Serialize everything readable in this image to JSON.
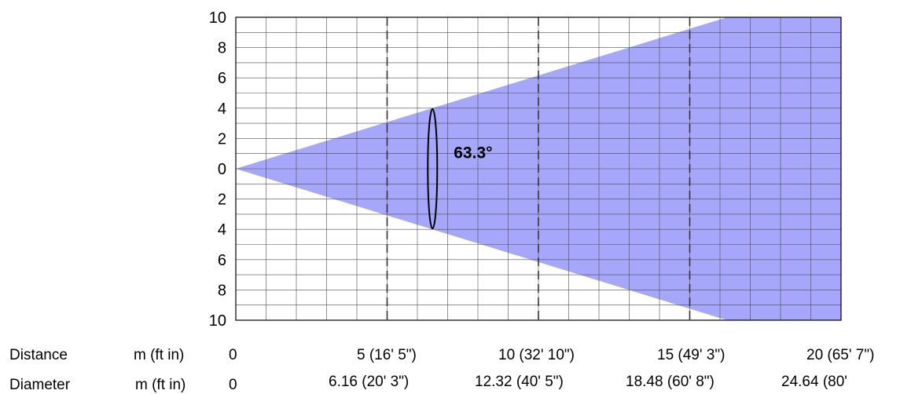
{
  "chart_data": {
    "type": "area",
    "title": "",
    "xlabel": "",
    "ylabel": "",
    "xlim": [
      0,
      20
    ],
    "ylim": [
      -10,
      10
    ],
    "grid": true,
    "y_tick_values": [
      10,
      8,
      6,
      4,
      2,
      0,
      -2,
      -4,
      -6,
      -8,
      -10
    ],
    "y_tick_labels": [
      "10",
      "8",
      "6",
      "4",
      "2",
      "0",
      "2",
      "4",
      "6",
      "8",
      "10"
    ],
    "beam_angle_deg": 63.3,
    "beam_angle_label": "63.3°",
    "beam_fill_color": "#a6a6fb",
    "reference_distances": [
      5,
      10,
      15
    ],
    "series": [
      {
        "x": [
          0,
          5,
          10,
          15,
          20
        ],
        "upper": [
          0,
          3.08,
          6.16,
          9.24,
          12.32
        ],
        "lower": [
          0,
          -3.08,
          -6.16,
          -9.24,
          -12.32
        ]
      }
    ]
  },
  "table": {
    "distance_label": "Distance",
    "diameter_label": "Diameter",
    "unit_label": "m (ft in)",
    "distance_values": [
      "0",
      "5 (16' 5\")",
      "10 (32' 10\")",
      "15 (49' 3\")",
      "20 (65' 7\")"
    ],
    "diameter_values": [
      "0",
      "6.16 (20' 3\")",
      "12.32 (40' 5\")",
      "18.48 (60' 8\")",
      "24.64 (80'"
    ]
  }
}
